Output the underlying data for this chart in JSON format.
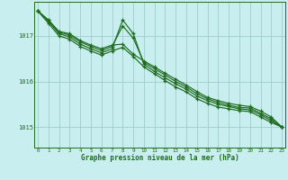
{
  "title": "Graphe pression niveau de la mer (hPa)",
  "bg_color": "#c8eef0",
  "grid_color": "#a0cccc",
  "line_color": "#1e6b1e",
  "x_ticks": [
    0,
    1,
    2,
    3,
    4,
    5,
    6,
    7,
    8,
    9,
    10,
    11,
    12,
    13,
    14,
    15,
    16,
    17,
    18,
    19,
    20,
    21,
    22,
    23
  ],
  "y_ticks": [
    1015,
    1016,
    1017
  ],
  "ylim": [
    1014.55,
    1017.75
  ],
  "xlim": [
    -0.3,
    23.3
  ],
  "series": [
    [
      1017.55,
      1017.35,
      1017.1,
      1017.05,
      1016.9,
      1016.8,
      1016.72,
      1016.8,
      1016.82,
      1016.6,
      1016.45,
      1016.32,
      1016.18,
      1016.05,
      1015.92,
      1015.78,
      1015.65,
      1015.58,
      1015.52,
      1015.48,
      1015.45,
      1015.35,
      1015.22,
      1015.0
    ],
    [
      1017.55,
      1017.35,
      1017.08,
      1017.02,
      1016.87,
      1016.77,
      1016.68,
      1016.77,
      1017.22,
      1016.95,
      1016.42,
      1016.28,
      1016.14,
      1016.0,
      1015.88,
      1015.73,
      1015.62,
      1015.54,
      1015.48,
      1015.43,
      1015.42,
      1015.3,
      1015.18,
      1015.0
    ],
    [
      1017.55,
      1017.32,
      1017.05,
      1016.98,
      1016.82,
      1016.72,
      1016.63,
      1016.72,
      1017.35,
      1017.05,
      1016.38,
      1016.22,
      1016.08,
      1015.95,
      1015.83,
      1015.68,
      1015.58,
      1015.5,
      1015.45,
      1015.4,
      1015.38,
      1015.27,
      1015.14,
      1015.0
    ],
    [
      1017.55,
      1017.28,
      1017.0,
      1016.93,
      1016.77,
      1016.67,
      1016.58,
      1016.67,
      1016.75,
      1016.55,
      1016.32,
      1016.17,
      1016.02,
      1015.88,
      1015.77,
      1015.62,
      1015.52,
      1015.44,
      1015.4,
      1015.36,
      1015.34,
      1015.22,
      1015.1,
      1015.0
    ]
  ]
}
